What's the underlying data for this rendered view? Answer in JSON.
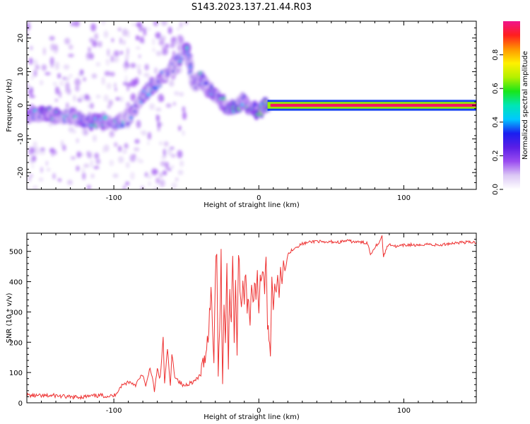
{
  "title": "S143.2023.137.21.44.R03",
  "colors": {
    "snr_line": "#ee3333",
    "axis": "#000000",
    "background": "#ffffff"
  },
  "chart_data": [
    {
      "type": "heatmap",
      "title": "S143.2023.137.21.44.R03",
      "xlabel": "Height of straight line (km)",
      "ylabel": "Frequency (Hz)",
      "xlim": [
        -160,
        150
      ],
      "ylim": [
        -25,
        25
      ],
      "xticks": [
        -100,
        0,
        100
      ],
      "yticks": [
        -20,
        -10,
        0,
        10,
        20
      ],
      "grid": false,
      "colorbar": {
        "label": "Normalized spectral amplitude",
        "range": [
          0,
          1
        ],
        "ticks": [
          0.0,
          0.2,
          0.4,
          0.6,
          0.8
        ],
        "colormap": [
          "#ffffff",
          "#dcc8f5",
          "#9a4cf0",
          "#5a1ee6",
          "#1a1ef0",
          "#00c8ff",
          "#00e6b4",
          "#19e619",
          "#b4f000",
          "#fff000",
          "#ff9600",
          "#ff1e1e",
          "#f0148c"
        ]
      },
      "ridge": [
        {
          "x": -160,
          "f": -3,
          "amp": 0.45
        },
        {
          "x": -150,
          "f": -2,
          "amp": 0.5
        },
        {
          "x": -140,
          "f": -3.5,
          "amp": 0.45
        },
        {
          "x": -130,
          "f": -3,
          "amp": 0.4
        },
        {
          "x": -120,
          "f": -4.5,
          "amp": 0.45
        },
        {
          "x": -110,
          "f": -5,
          "amp": 0.45
        },
        {
          "x": -100,
          "f": -5.5,
          "amp": 0.45
        },
        {
          "x": -90,
          "f": -4,
          "amp": 0.4
        },
        {
          "x": -80,
          "f": 3,
          "amp": 0.4
        },
        {
          "x": -70,
          "f": 7,
          "amp": 0.4
        },
        {
          "x": -60,
          "f": 11,
          "amp": 0.35
        },
        {
          "x": -50,
          "f": 17,
          "amp": 0.4
        },
        {
          "x": -45,
          "f": 6,
          "amp": 0.4
        },
        {
          "x": -40,
          "f": 8,
          "amp": 0.45
        },
        {
          "x": -35,
          "f": 5,
          "amp": 0.4
        },
        {
          "x": -30,
          "f": 3,
          "amp": 0.45
        },
        {
          "x": -25,
          "f": 1,
          "amp": 0.45
        },
        {
          "x": -20,
          "f": -1,
          "amp": 0.5
        },
        {
          "x": -15,
          "f": -0.5,
          "amp": 0.55
        },
        {
          "x": -10,
          "f": 1.5,
          "amp": 0.5
        },
        {
          "x": -5,
          "f": -1,
          "amp": 0.5
        },
        {
          "x": 0,
          "f": -1.5,
          "amp": 0.55
        },
        {
          "x": 5,
          "f": 0,
          "amp": 0.8
        },
        {
          "x": 10,
          "f": 0,
          "amp": 1.0
        },
        {
          "x": 150,
          "f": 0,
          "amp": 1.0
        }
      ]
    },
    {
      "type": "line",
      "xlabel": "Height of straight line (km)",
      "ylabel": "SNR (10 * v/v)",
      "xlim": [
        -160,
        150
      ],
      "ylim": [
        0,
        560
      ],
      "xticks": [
        -100,
        0,
        100
      ],
      "yticks": [
        0,
        100,
        200,
        300,
        400,
        500
      ],
      "grid": false,
      "series": [
        {
          "x": [
            -160,
            -150,
            -140,
            -130,
            -120,
            -110,
            -100,
            -95,
            -90,
            -85,
            -80,
            -78,
            -75,
            -72,
            -70,
            -68,
            -66,
            -65,
            -63,
            -61,
            -60,
            -58,
            -55,
            -52,
            -50,
            -48,
            -45,
            -42,
            -40,
            -38,
            -35,
            -33,
            -31,
            -30,
            -29,
            -28,
            -27,
            -26,
            -25,
            -24,
            -23,
            -22,
            -21,
            -20,
            -19,
            -18,
            -17,
            -16,
            -15,
            -14,
            -13,
            -12,
            -11,
            -10,
            -9,
            -8,
            -7,
            -6,
            -5,
            -4,
            -3,
            -2,
            -1,
            0,
            1,
            2,
            3,
            4,
            5,
            6,
            7,
            8,
            9,
            10,
            11,
            12,
            13,
            14,
            15,
            16,
            17,
            18,
            19,
            20,
            22,
            24,
            26,
            28,
            30,
            35,
            40,
            45,
            50,
            55,
            60,
            65,
            70,
            75,
            77,
            80,
            83,
            85,
            86,
            88,
            90,
            95,
            100,
            105,
            110,
            115,
            120,
            125,
            130,
            135,
            140,
            145,
            150
          ],
          "y": [
            25,
            22,
            24,
            18,
            20,
            24,
            22,
            55,
            70,
            60,
            95,
            50,
            120,
            40,
            110,
            80,
            215,
            60,
            180,
            50,
            160,
            90,
            70,
            55,
            60,
            65,
            70,
            80,
            100,
            130,
            220,
            370,
            150,
            420,
            520,
            100,
            250,
            480,
            60,
            350,
            180,
            470,
            110,
            380,
            260,
            500,
            200,
            430,
            150,
            510,
            380,
            290,
            420,
            330,
            450,
            300,
            350,
            270,
            410,
            330,
            380,
            360,
            440,
            300,
            420,
            390,
            460,
            330,
            500,
            270,
            230,
            150,
            440,
            310,
            390,
            360,
            420,
            350,
            450,
            390,
            470,
            440,
            460,
            490,
            500,
            510,
            515,
            520,
            525,
            530,
            535,
            528,
            532,
            530,
            535,
            532,
            530,
            528,
            490,
            515,
            530,
            550,
            480,
            510,
            525,
            515,
            520,
            522,
            518,
            525,
            522,
            520,
            525,
            528,
            530,
            530,
            530
          ]
        }
      ]
    }
  ]
}
